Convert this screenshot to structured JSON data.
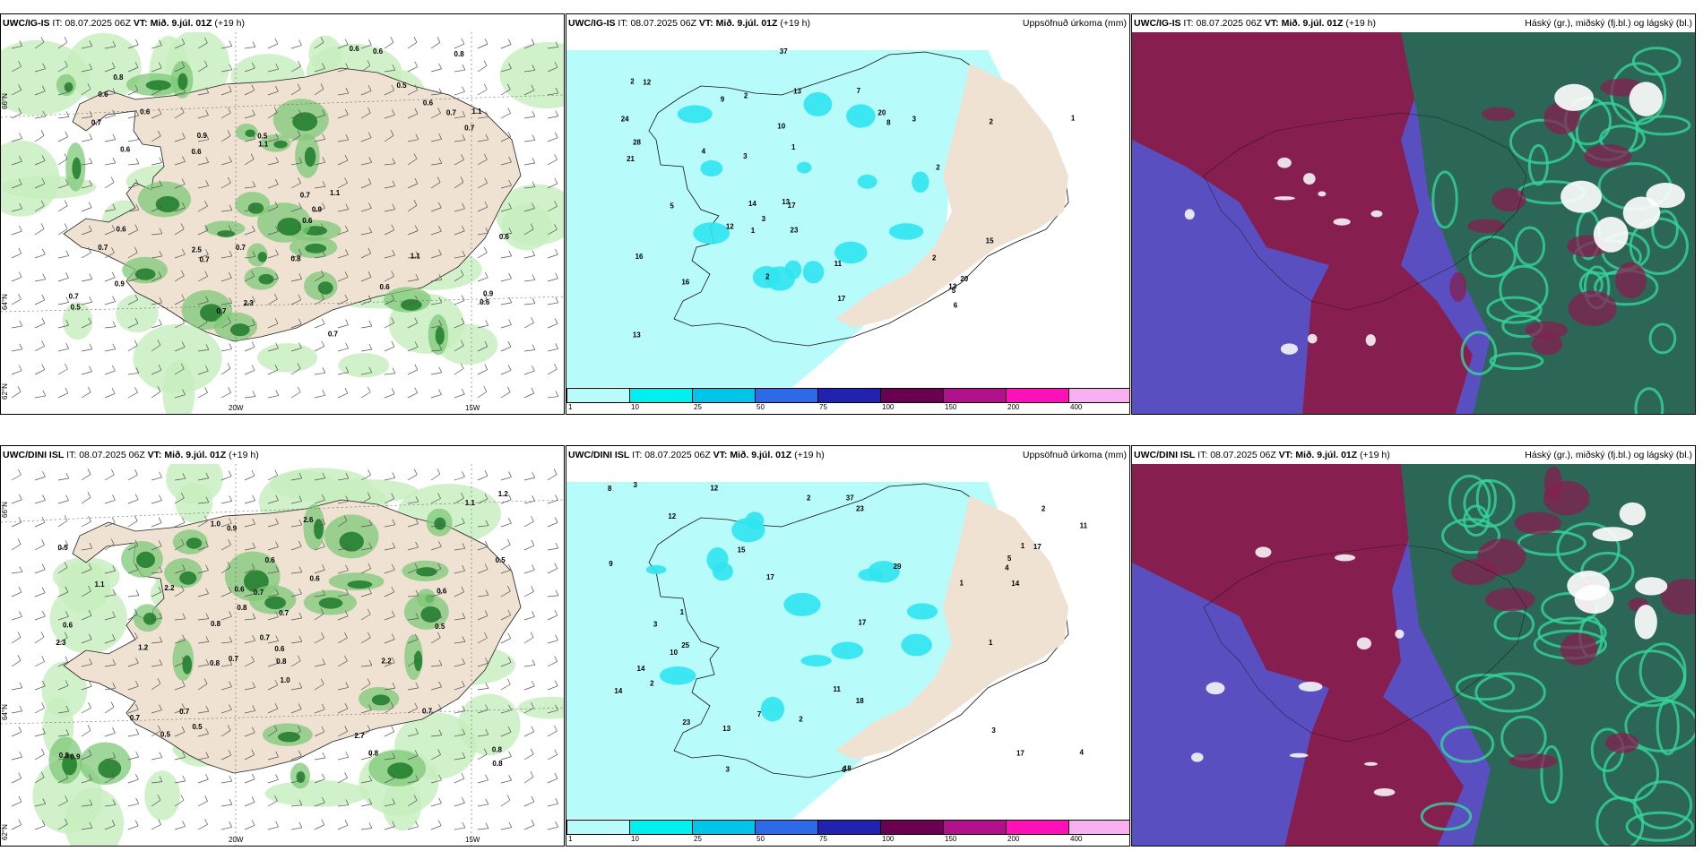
{
  "rows": [
    {
      "model": "UWC/IG-IS",
      "it_label": "IT:",
      "it_value": "08.07.2025 06Z",
      "vt_label": "VT:",
      "vt_value": "Mið. 9.júl. 01Z",
      "lead": "(+19 h)"
    },
    {
      "model": "UWC/DINI ISL",
      "it_label": "IT:",
      "it_value": "08.07.2025 06Z",
      "vt_label": "VT:",
      "vt_value": "Mið. 9.júl. 01Z",
      "lead": "(+19 h)"
    }
  ],
  "panels": {
    "precip_title": "Uppsöfnuð úrkoma (mm)",
    "cloud_title": "Háský (gr.), miðský (fj.bl.) og lágský (bl.)"
  },
  "axis_labels": {
    "lat66": "66°N",
    "lat64": "64°N",
    "lat62": "62°N",
    "lon20": "20W",
    "lon15": "15W"
  },
  "colorbar": {
    "ticks": [
      "1",
      "10",
      "25",
      "50",
      "75",
      "100",
      "150",
      "200",
      "400"
    ],
    "colors": [
      "#b8fbfb",
      "#00f0f0",
      "#00c4e8",
      "#2e6ae8",
      "#2222b0",
      "#6a0050",
      "#b0108a",
      "#ff10b8",
      "#f8b0f0"
    ]
  },
  "map_colors": {
    "land": "#efe2d2",
    "light_green": "#c8efc0",
    "mid_green": "#7fc878",
    "dark_green": "#1e7a2a",
    "precip_light": "#b8fbfb",
    "precip_mid": "#30e4f0",
    "cloud_high": "#861f4f",
    "cloud_mid": "#5a4fc0",
    "cloud_low": "#2b6656",
    "cloud_accent": "#36d59a"
  },
  "top_wind_values": [
    "0.7",
    "0.7",
    "0.6",
    "0.6",
    "2.5",
    "0.9",
    "0.8",
    "0.7",
    "0.6",
    "0.6",
    "1.1",
    "1.1",
    "2.3",
    "0.6",
    "0.7",
    "0.6",
    "0.9",
    "0.7",
    "0.5",
    "0.9",
    "0.7",
    "1.1",
    "0.6",
    "0.5",
    "0.8",
    "0.9",
    "0.8",
    "0.7",
    "0.5",
    "0.6",
    "0.7",
    "0.6",
    "0.7",
    "0.6",
    "1.1",
    "0.6",
    "0.6",
    "0.7"
  ],
  "bot_wind_values": [
    "0.7",
    "0.8",
    "0.5",
    "0.8",
    "0.7",
    "0.5",
    "2.6",
    "2.2",
    "0.5",
    "0.7",
    "0.8",
    "1.0",
    "0.6",
    "1.2",
    "0.5",
    "0.6",
    "0.6",
    "0.8",
    "0.7",
    "0.9",
    "1.1",
    "0.8",
    "0.6",
    "0.9",
    "0.7",
    "1.2",
    "0.8",
    "1.0",
    "0.7",
    "2.2",
    "0.6",
    "2.7",
    "2.3",
    "0.8",
    "0.8",
    "0.5",
    "0.7",
    "1.1",
    "0.6"
  ],
  "top_precip_values": [
    "2",
    "3",
    "2",
    "2",
    "15",
    "11",
    "13",
    "10",
    "12",
    "20",
    "17",
    "12",
    "13",
    "16",
    "14",
    "16",
    "21",
    "20",
    "28",
    "23",
    "37",
    "13",
    "17",
    "24",
    "13",
    "2",
    "1",
    "2",
    "1",
    "1",
    "3",
    "5",
    "6",
    "8",
    "4",
    "9",
    "7",
    "5",
    "3",
    "2"
  ],
  "bot_precip_values": [
    "2",
    "1",
    "3",
    "2",
    "13",
    "10",
    "11",
    "17",
    "25",
    "18",
    "14",
    "18",
    "15",
    "14",
    "17",
    "23",
    "17",
    "23",
    "37",
    "12",
    "17",
    "29",
    "14",
    "4",
    "3",
    "1",
    "1",
    "2",
    "1",
    "3",
    "5",
    "6",
    "8",
    "7",
    "9",
    "4",
    "3",
    "2",
    "12",
    "11"
  ]
}
